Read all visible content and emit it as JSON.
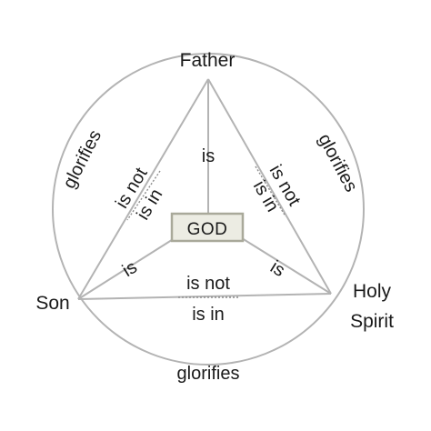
{
  "nodes": {
    "father": "Father",
    "son": "Son",
    "holy_spirit_line1": "Holy",
    "holy_spirit_line2": "Spirit",
    "god": "GOD"
  },
  "edges": {
    "father_son": {
      "top": "is not",
      "bottom": "is in"
    },
    "father_spirit": {
      "top": "is not",
      "bottom": "is in"
    },
    "son_spirit": {
      "top": "is not",
      "bottom": "is in"
    },
    "father_god": "is",
    "son_god": "is",
    "spirit_god": "is"
  },
  "circle_labels": {
    "left": "glorifies",
    "right": "glorifies",
    "bottom": "glorifies"
  },
  "colors": {
    "line": "#b3b3b3",
    "god_box_border": "#a9a99a",
    "god_box_fill": "#ecece3",
    "text": "#1a1a1a"
  }
}
